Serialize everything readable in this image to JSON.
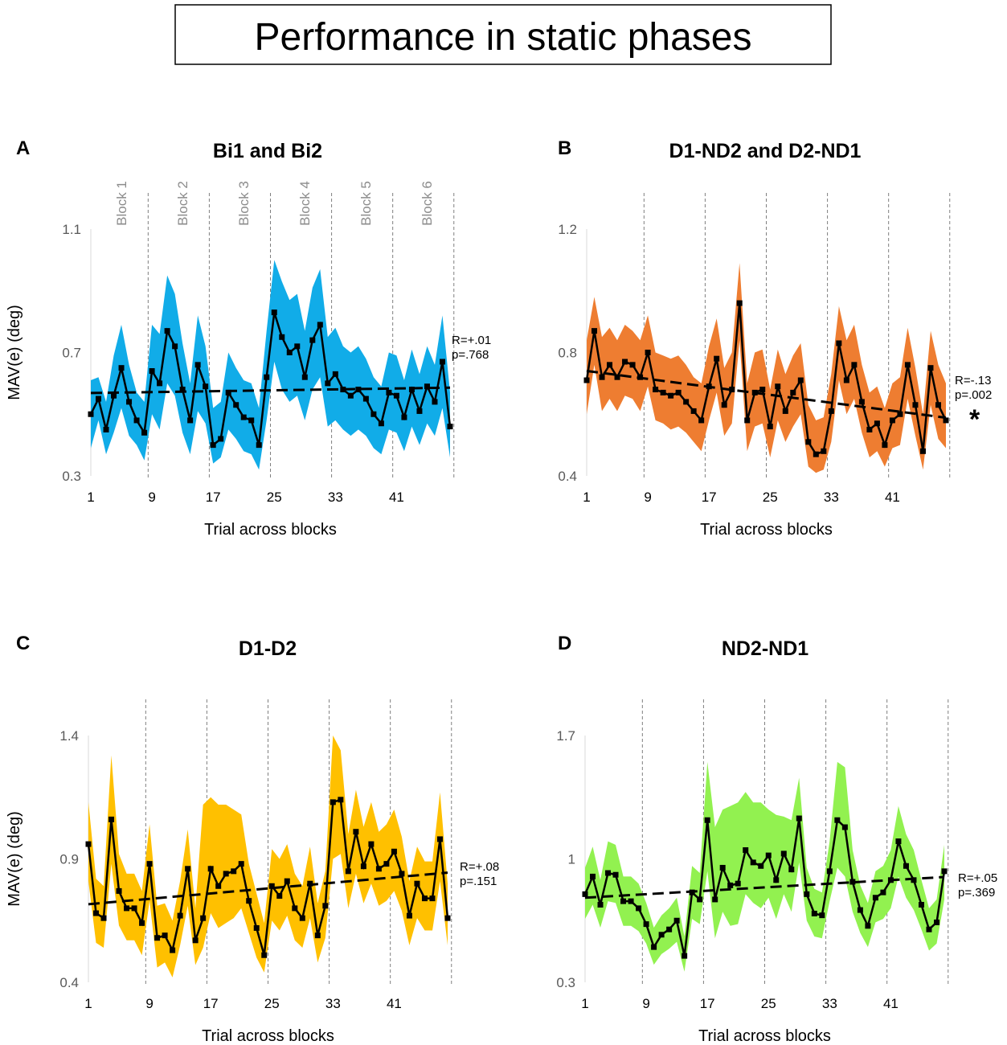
{
  "figure": {
    "title": "Performance in static phases",
    "ylabel": "MAV(e) (deg)",
    "xlabel": "Trial across blocks",
    "xticks": [
      1,
      9,
      17,
      25,
      33,
      41
    ],
    "block_labels": [
      "Block 1",
      "Block 2",
      "Block 3",
      "Block 4",
      "Block 5",
      "Block 6"
    ]
  },
  "chart_data": [
    {
      "type": "line",
      "panel": "A",
      "title": "Bi1 and Bi2",
      "color": "#11ACE8",
      "ylim": [
        0.3,
        1.1
      ],
      "yticks": [
        "0.3",
        "0.7",
        "1.1"
      ],
      "stat_r": "R=+.01",
      "stat_p": "p=.768",
      "significant": false,
      "x_range": [
        1,
        48
      ],
      "mean": [
        0.5,
        0.55,
        0.45,
        0.56,
        0.65,
        0.54,
        0.48,
        0.44,
        0.64,
        0.6,
        0.77,
        0.72,
        0.58,
        0.48,
        0.66,
        0.59,
        0.4,
        0.42,
        0.57,
        0.53,
        0.49,
        0.48,
        0.4,
        0.62,
        0.83,
        0.75,
        0.7,
        0.72,
        0.62,
        0.74,
        0.79,
        0.6,
        0.63,
        0.58,
        0.56,
        0.58,
        0.55,
        0.5,
        0.47,
        0.57,
        0.56,
        0.49,
        0.58,
        0.51,
        0.59,
        0.54,
        0.67,
        0.46
      ],
      "upper": [
        0.61,
        0.62,
        0.54,
        0.69,
        0.79,
        0.66,
        0.57,
        0.54,
        0.79,
        0.76,
        0.95,
        0.89,
        0.73,
        0.6,
        0.82,
        0.72,
        0.52,
        0.54,
        0.7,
        0.65,
        0.61,
        0.6,
        0.52,
        0.77,
        1.0,
        0.93,
        0.87,
        0.89,
        0.77,
        0.91,
        0.97,
        0.75,
        0.78,
        0.72,
        0.7,
        0.72,
        0.68,
        0.62,
        0.59,
        0.7,
        0.69,
        0.61,
        0.71,
        0.63,
        0.72,
        0.66,
        0.82,
        0.57
      ],
      "lower": [
        0.39,
        0.48,
        0.37,
        0.44,
        0.52,
        0.43,
        0.4,
        0.35,
        0.5,
        0.45,
        0.6,
        0.56,
        0.44,
        0.37,
        0.51,
        0.47,
        0.34,
        0.36,
        0.45,
        0.42,
        0.38,
        0.37,
        0.32,
        0.48,
        0.67,
        0.58,
        0.54,
        0.56,
        0.48,
        0.58,
        0.62,
        0.46,
        0.48,
        0.45,
        0.43,
        0.45,
        0.43,
        0.39,
        0.37,
        0.45,
        0.44,
        0.38,
        0.46,
        0.4,
        0.47,
        0.43,
        0.52,
        0.36
      ],
      "trend": [
        0.58,
        0.59
      ]
    },
    {
      "type": "line",
      "panel": "B",
      "title": "D1-ND2 and D2-ND1",
      "color": "#EE7D31",
      "ylim": [
        0.4,
        1.2
      ],
      "yticks": [
        "0.4",
        "0.8",
        "1.2"
      ],
      "stat_r": "R=-.13",
      "stat_p": "p=.002",
      "significant": true,
      "x_range": [
        1,
        48
      ],
      "mean": [
        0.71,
        0.87,
        0.72,
        0.76,
        0.72,
        0.77,
        0.76,
        0.72,
        0.8,
        0.68,
        0.67,
        0.66,
        0.67,
        0.64,
        0.61,
        0.58,
        0.69,
        0.78,
        0.63,
        0.68,
        0.96,
        0.58,
        0.67,
        0.68,
        0.56,
        0.69,
        0.61,
        0.67,
        0.71,
        0.51,
        0.47,
        0.48,
        0.61,
        0.83,
        0.71,
        0.76,
        0.64,
        0.55,
        0.57,
        0.5,
        0.58,
        0.6,
        0.76,
        0.63,
        0.48,
        0.75,
        0.63,
        0.58
      ],
      "upper": [
        0.84,
        0.98,
        0.85,
        0.88,
        0.84,
        0.89,
        0.87,
        0.84,
        0.92,
        0.8,
        0.79,
        0.78,
        0.79,
        0.76,
        0.72,
        0.7,
        0.82,
        0.91,
        0.75,
        0.8,
        1.09,
        0.7,
        0.8,
        0.81,
        0.68,
        0.81,
        0.73,
        0.79,
        0.83,
        0.63,
        0.58,
        0.59,
        0.73,
        0.95,
        0.84,
        0.89,
        0.76,
        0.67,
        0.69,
        0.62,
        0.7,
        0.72,
        0.88,
        0.75,
        0.6,
        0.87,
        0.76,
        0.7
      ],
      "lower": [
        0.6,
        0.76,
        0.61,
        0.65,
        0.61,
        0.66,
        0.65,
        0.61,
        0.69,
        0.58,
        0.57,
        0.55,
        0.56,
        0.54,
        0.51,
        0.48,
        0.58,
        0.67,
        0.53,
        0.57,
        0.84,
        0.48,
        0.56,
        0.57,
        0.46,
        0.58,
        0.51,
        0.56,
        0.6,
        0.43,
        0.41,
        0.42,
        0.51,
        0.71,
        0.6,
        0.65,
        0.54,
        0.46,
        0.48,
        0.43,
        0.49,
        0.5,
        0.65,
        0.53,
        0.42,
        0.63,
        0.52,
        0.49
      ]
    },
    {
      "type": "line",
      "panel": "C",
      "title": "D1-D2",
      "color": "#FFC000",
      "ylim": [
        0.4,
        1.4
      ],
      "yticks": [
        "0.4",
        "0.9",
        "1.4"
      ],
      "stat_r": "R=+.08",
      "stat_p": "p=.151",
      "significant": false,
      "x_range": [
        1,
        48
      ],
      "mean": [
        0.96,
        0.68,
        0.66,
        1.06,
        0.77,
        0.7,
        0.7,
        0.64,
        0.88,
        0.58,
        0.59,
        0.53,
        0.67,
        0.86,
        0.57,
        0.66,
        0.86,
        0.79,
        0.84,
        0.85,
        0.88,
        0.73,
        0.62,
        0.51,
        0.79,
        0.75,
        0.81,
        0.7,
        0.66,
        0.8,
        0.59,
        0.71,
        1.13,
        1.14,
        0.85,
        1.01,
        0.87,
        0.96,
        0.86,
        0.88,
        0.93,
        0.84,
        0.67,
        0.8,
        0.74,
        0.74,
        0.98,
        0.66
      ],
      "upper": [
        1.13,
        0.82,
        0.79,
        1.32,
        0.92,
        0.84,
        0.84,
        0.77,
        1.04,
        0.71,
        0.72,
        0.65,
        0.81,
        1.02,
        0.7,
        1.12,
        1.15,
        1.12,
        1.12,
        1.1,
        1.08,
        0.88,
        0.76,
        0.64,
        0.94,
        0.9,
        0.96,
        0.84,
        0.79,
        0.95,
        0.72,
        0.85,
        1.4,
        1.34,
        1.0,
        1.18,
        1.03,
        1.13,
        1.01,
        1.04,
        1.1,
        0.99,
        0.81,
        0.95,
        0.89,
        0.89,
        1.17,
        0.8
      ],
      "lower": [
        0.81,
        0.56,
        0.54,
        0.88,
        0.63,
        0.57,
        0.57,
        0.51,
        0.73,
        0.46,
        0.48,
        0.42,
        0.55,
        0.71,
        0.47,
        0.54,
        0.68,
        0.62,
        0.64,
        0.66,
        0.7,
        0.6,
        0.5,
        0.44,
        0.65,
        0.61,
        0.67,
        0.57,
        0.54,
        0.66,
        0.48,
        0.58,
        0.9,
        0.92,
        0.7,
        0.84,
        0.72,
        0.8,
        0.71,
        0.73,
        0.77,
        0.69,
        0.55,
        0.66,
        0.61,
        0.61,
        0.81,
        0.55
      ]
    },
    {
      "type": "line",
      "panel": "D",
      "title": "ND2-ND1",
      "color": "#92F150",
      "ylim": [
        0.3,
        1.7
      ],
      "yticks": [
        "0.3",
        "1",
        "1.7"
      ],
      "stat_r": "R=+.05",
      "stat_p": "p=.369",
      "significant": false,
      "x_range": [
        1,
        48
      ],
      "mean": [
        0.8,
        0.9,
        0.74,
        0.92,
        0.91,
        0.76,
        0.76,
        0.72,
        0.63,
        0.5,
        0.57,
        0.6,
        0.65,
        0.45,
        0.81,
        0.77,
        1.22,
        0.77,
        0.95,
        0.85,
        0.86,
        1.05,
        0.98,
        0.96,
        1.02,
        0.88,
        1.03,
        0.94,
        1.23,
        0.8,
        0.69,
        0.68,
        0.93,
        1.22,
        1.18,
        0.87,
        0.71,
        0.62,
        0.78,
        0.81,
        0.88,
        1.1,
        0.96,
        0.88,
        0.74,
        0.6,
        0.64,
        0.93
      ],
      "upper": [
        0.95,
        1.07,
        0.88,
        1.1,
        1.08,
        0.9,
        0.9,
        0.86,
        0.75,
        0.61,
        0.68,
        0.72,
        0.78,
        0.56,
        0.96,
        0.92,
        1.55,
        1.18,
        1.28,
        1.3,
        1.32,
        1.38,
        1.32,
        1.32,
        1.28,
        1.25,
        1.24,
        1.22,
        1.46,
        0.95,
        0.83,
        0.81,
        1.1,
        1.55,
        1.52,
        1.05,
        0.85,
        0.75,
        0.93,
        0.96,
        1.05,
        1.3,
        1.14,
        1.05,
        0.88,
        0.72,
        0.77,
        1.08
      ],
      "lower": [
        0.66,
        0.74,
        0.61,
        0.76,
        0.75,
        0.62,
        0.62,
        0.59,
        0.52,
        0.4,
        0.46,
        0.49,
        0.53,
        0.36,
        0.66,
        0.63,
        0.93,
        0.55,
        0.7,
        0.62,
        0.63,
        0.8,
        0.75,
        0.72,
        0.78,
        0.66,
        0.8,
        0.7,
        0.98,
        0.65,
        0.56,
        0.55,
        0.76,
        0.95,
        0.9,
        0.7,
        0.58,
        0.5,
        0.64,
        0.66,
        0.72,
        0.9,
        0.78,
        0.71,
        0.6,
        0.48,
        0.52,
        0.77
      ]
    }
  ]
}
